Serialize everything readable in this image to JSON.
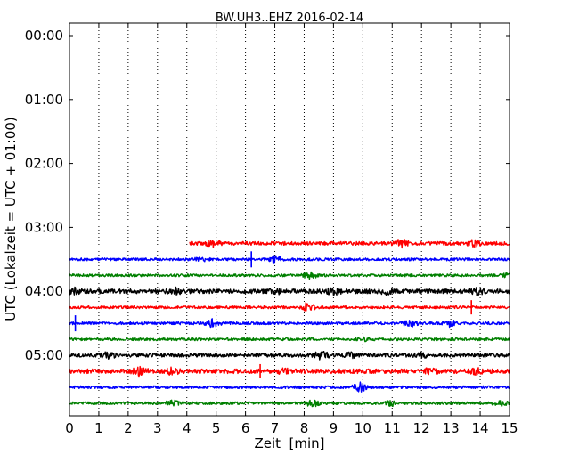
{
  "chart_data": {
    "type": "line",
    "title": "BW.UH3..EHZ 2016-02-14",
    "xlabel": "Zeit  [min]",
    "ylabel": "UTC (Lokalzeit = UTC + 01:00)",
    "xlim": [
      0,
      15
    ],
    "x_ticks": [
      0,
      1,
      2,
      3,
      4,
      5,
      6,
      7,
      8,
      9,
      10,
      11,
      12,
      13,
      14,
      15
    ],
    "y_ticks": [
      {
        "label": "00:00",
        "hour": 0
      },
      {
        "label": "01:00",
        "hour": 1
      },
      {
        "label": "02:00",
        "hour": 2
      },
      {
        "label": "03:00",
        "hour": 3
      },
      {
        "label": "04:00",
        "hour": 4
      },
      {
        "label": "05:00",
        "hour": 5
      }
    ],
    "grid": "vertical-dotted",
    "traces": [
      {
        "start": "03:15",
        "color": "#ff0000",
        "x_start": 4.1,
        "x_end": 15,
        "amplitude": 2,
        "events": [
          {
            "x": 4.9,
            "amp": 5
          },
          {
            "x": 11.3,
            "amp": 6
          },
          {
            "x": 13.8,
            "amp": 5
          }
        ]
      },
      {
        "start": "03:30",
        "color": "#0000ff",
        "x_start": 0,
        "x_end": 15,
        "amplitude": 1.5,
        "events": [
          {
            "x": 6.2,
            "amp": 9,
            "spike": true
          },
          {
            "x": 7.0,
            "amp": 5
          },
          {
            "x": 4.5,
            "amp": 3
          }
        ]
      },
      {
        "start": "03:45",
        "color": "#008000",
        "x_start": 0,
        "x_end": 15,
        "amplitude": 1.5,
        "events": [
          {
            "x": 8.2,
            "amp": 5
          },
          {
            "x": 15.0,
            "amp": 4
          }
        ]
      },
      {
        "start": "04:00",
        "color": "#000000",
        "x_start": 0,
        "x_end": 15,
        "amplitude": 2.5,
        "events": [
          {
            "x": 0.2,
            "amp": 5
          },
          {
            "x": 3.6,
            "amp": 5
          },
          {
            "x": 7.0,
            "amp": 5
          },
          {
            "x": 9.0,
            "amp": 5
          },
          {
            "x": 10.8,
            "amp": 5
          },
          {
            "x": 13.9,
            "amp": 5
          }
        ]
      },
      {
        "start": "04:15",
        "color": "#ff0000",
        "x_start": 0,
        "x_end": 15,
        "amplitude": 1.5,
        "events": [
          {
            "x": 8.1,
            "amp": 6
          },
          {
            "x": 13.7,
            "amp": 8,
            "spike": true
          }
        ]
      },
      {
        "start": "04:30",
        "color": "#0000ff",
        "x_start": 0,
        "x_end": 15,
        "amplitude": 1.5,
        "events": [
          {
            "x": 0.2,
            "amp": 9,
            "spike": true
          },
          {
            "x": 4.9,
            "amp": 6
          },
          {
            "x": 11.6,
            "amp": 5
          },
          {
            "x": 13.0,
            "amp": 5
          }
        ]
      },
      {
        "start": "04:45",
        "color": "#008000",
        "x_start": 0,
        "x_end": 15,
        "amplitude": 1.5,
        "events": [
          {
            "x": 10.0,
            "amp": 3
          }
        ]
      },
      {
        "start": "05:00",
        "color": "#000000",
        "x_start": 0,
        "x_end": 15,
        "amplitude": 2,
        "events": [
          {
            "x": 1.3,
            "amp": 5
          },
          {
            "x": 8.6,
            "amp": 6
          },
          {
            "x": 9.6,
            "amp": 4
          },
          {
            "x": 12.0,
            "amp": 4
          }
        ]
      },
      {
        "start": "05:15",
        "color": "#ff0000",
        "x_start": 0,
        "x_end": 15,
        "amplitude": 2.5,
        "events": [
          {
            "x": 2.4,
            "amp": 6
          },
          {
            "x": 3.5,
            "amp": 5
          },
          {
            "x": 6.5,
            "amp": 8,
            "spike": true
          },
          {
            "x": 7.3,
            "amp": 5
          },
          {
            "x": 12.3,
            "amp": 5
          },
          {
            "x": 13.9,
            "amp": 5
          }
        ]
      },
      {
        "start": "05:30",
        "color": "#0000ff",
        "x_start": 0,
        "x_end": 15,
        "amplitude": 1.5,
        "events": [
          {
            "x": 9.9,
            "amp": 6
          }
        ]
      },
      {
        "start": "05:45",
        "color": "#008000",
        "x_start": 0,
        "x_end": 15,
        "amplitude": 1.5,
        "events": [
          {
            "x": 3.5,
            "amp": 4
          },
          {
            "x": 8.3,
            "amp": 5
          },
          {
            "x": 11.0,
            "amp": 4
          },
          {
            "x": 14.7,
            "amp": 4
          }
        ]
      }
    ]
  }
}
